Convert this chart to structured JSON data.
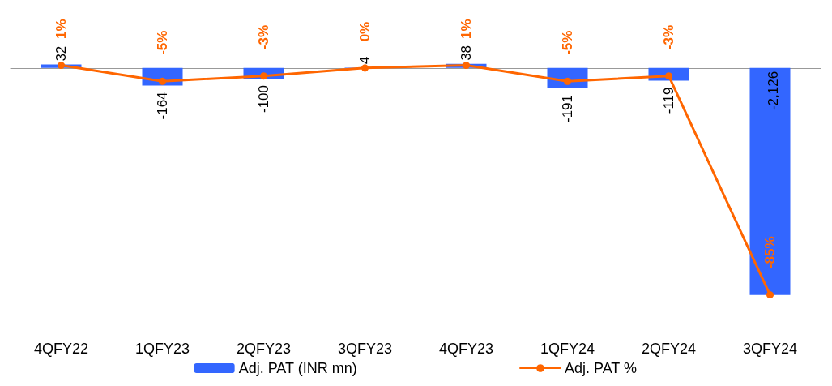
{
  "chart_data": {
    "type": "bar",
    "categories": [
      "4QFY22",
      "1QFY23",
      "2QFY23",
      "3QFY23",
      "4QFY23",
      "1QFY24",
      "2QFY24",
      "3QFY24"
    ],
    "series": [
      {
        "name": "Adj. PAT (INR mn)",
        "color": "#3366ff",
        "values": [
          32,
          -164,
          -100,
          4,
          38,
          -191,
          -119,
          -2126
        ],
        "value_labels": [
          "32",
          "-164",
          "-100",
          "4",
          "38",
          "-191",
          "-119",
          "-2,126"
        ]
      },
      {
        "name": "Adj. PAT %",
        "type": "line",
        "axis": "y2",
        "color": "#ff6600",
        "values": [
          1,
          -5,
          -3,
          0,
          1,
          -5,
          -3,
          -85
        ],
        "value_labels": [
          "1%",
          "-5%",
          "-3%",
          "0%",
          "1%",
          "-5%",
          "-3%",
          "-85%"
        ]
      }
    ],
    "grid": false,
    "legend": "bottom",
    "marker": "circle",
    "line_style": "solid"
  }
}
